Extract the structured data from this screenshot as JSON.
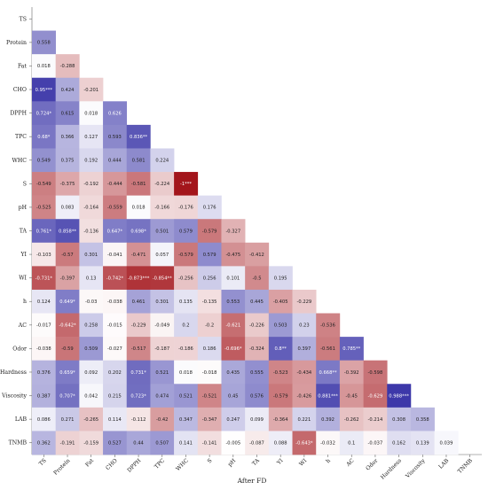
{
  "chart_data": {
    "type": "heatmap",
    "title": "",
    "xlabel": "After FD",
    "ylabel": "",
    "variables": [
      "TS",
      "Protein",
      "Fat",
      "CHO",
      "DPPH",
      "TPC",
      "WHC",
      "S",
      "pH",
      "TA",
      "YI",
      "WI",
      "h",
      "AC",
      "Odor",
      "Hardness",
      "Viscosity",
      "LAB",
      "TNMB"
    ],
    "rows": [
      [],
      [
        "0.558"
      ],
      [
        "0.018",
        "-0.288"
      ],
      [
        "0.95***",
        "0.424",
        "-0.201"
      ],
      [
        "0.724*",
        "0.615",
        "0.018",
        "0.626"
      ],
      [
        "0.68*",
        "0.366",
        "0.127",
        "0.593",
        "0.836**"
      ],
      [
        "0.549",
        "0.375",
        "0.192",
        "0.444",
        "0.581",
        "0.224"
      ],
      [
        "-0.549",
        "-0.375",
        "-0.192",
        "-0.444",
        "-0.581",
        "-0.224",
        "-1***"
      ],
      [
        "-0.525",
        "0.083",
        "-0.164",
        "-0.559",
        "0.018",
        "-0.166",
        "-0.176",
        "0.176"
      ],
      [
        "0.761*",
        "0.858**",
        "-0.136",
        "0.647*",
        "0.698*",
        "0.501",
        "0.579",
        "-0.579",
        "-0.327"
      ],
      [
        "-0.103",
        "-0.57",
        "0.301",
        "-0.041",
        "-0.471",
        "0.057",
        "-0.579",
        "0.579",
        "-0.475",
        "-0.412"
      ],
      [
        "-0.731*",
        "-0.397",
        "0.13",
        "-0.742*",
        "-0.873***",
        "-0.854**",
        "-0.256",
        "0.256",
        "0.101",
        "-0.5",
        "0.195"
      ],
      [
        "0.124",
        "0.649*",
        "-0.03",
        "-0.038",
        "0.461",
        "0.301",
        "0.135",
        "-0.135",
        "0.553",
        "0.445",
        "-0.405",
        "-0.229"
      ],
      [
        "-0.017",
        "-0.642*",
        "0.258",
        "-0.015",
        "-0.229",
        "-0.049",
        "0.2",
        "-0.2",
        "-0.621",
        "-0.226",
        "0.503",
        "0.23",
        "-0.536"
      ],
      [
        "-0.038",
        "-0.59",
        "0.509",
        "-0.027",
        "-0.517",
        "-0.187",
        "-0.186",
        "0.186",
        "-0.696*",
        "-0.324",
        "0.8**",
        "0.397",
        "-0.561",
        "0.785**"
      ],
      [
        "0.376",
        "0.659*",
        "0.092",
        "0.202",
        "0.731*",
        "0.521",
        "0.018",
        "-0.018",
        "0.435",
        "0.555",
        "-0.523",
        "-0.434",
        "0.668**",
        "-0.392",
        "-0.598"
      ],
      [
        "0.387",
        "0.707*",
        "0.042",
        "0.215",
        "0.723*",
        "0.474",
        "0.521",
        "-0.521",
        "0.45",
        "0.576",
        "-0.579",
        "-0.426",
        "0.881***",
        "-0.45",
        "-0.629",
        "0.988***"
      ],
      [
        "0.086",
        "0.271",
        "-0.265",
        "0.114",
        "-0.112",
        "-0.42",
        "0.347",
        "-0.347",
        "0.247",
        "0.099",
        "-0.364",
        "0.221",
        "0.392",
        "-0.262",
        "-0.214",
        "0.308",
        "0.358"
      ],
      [
        "0.362",
        "-0.191",
        "-0.159",
        "0.527",
        "0.44",
        "0.507",
        "0.141",
        "-0.141",
        "-0.005",
        "-0.087",
        "0.088",
        "-0.643*",
        "-0.032",
        "0.1",
        "-0.037",
        "0.162",
        "0.139",
        "0.039"
      ]
    ],
    "color_scale": {
      "positive": "#3b36a8",
      "zero": "#ffffff",
      "negative": "#a3151b",
      "range": [
        -1,
        1
      ]
    }
  }
}
